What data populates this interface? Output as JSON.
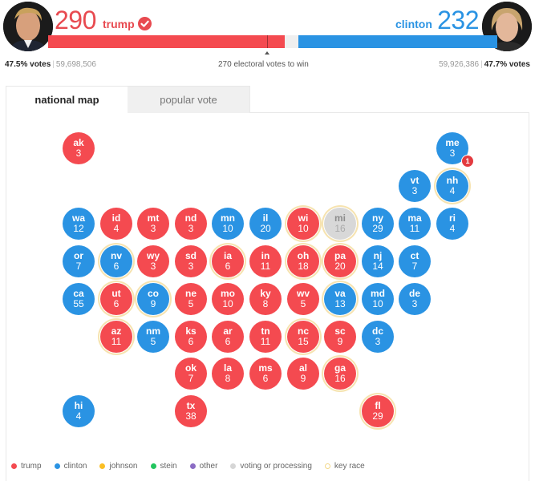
{
  "header": {
    "trump": {
      "electoral_votes": "290",
      "name": "trump",
      "winner": true,
      "popular_pct": "47.5% votes",
      "popular_count": "59,698,506",
      "color": "#f44a50"
    },
    "clinton": {
      "electoral_votes": "232",
      "name": "clinton",
      "winner": false,
      "popular_pct": "47.7% votes",
      "popular_count": "59,926,386",
      "color": "#2a93e3"
    },
    "threshold_label": "270 electoral votes to win",
    "separator": "|"
  },
  "tabs": [
    {
      "label": "national map",
      "active": true
    },
    {
      "label": "popular vote",
      "active": false
    }
  ],
  "map": {
    "states": [
      {
        "abbr": "ak",
        "ev": "3",
        "winner": "trump",
        "key": false,
        "col": 0,
        "row": 0
      },
      {
        "abbr": "me",
        "ev": "3",
        "winner": "clinton",
        "key": false,
        "col": 10,
        "row": 0,
        "badge": "1"
      },
      {
        "abbr": "vt",
        "ev": "3",
        "winner": "clinton",
        "key": false,
        "col": 9,
        "row": 1
      },
      {
        "abbr": "nh",
        "ev": "4",
        "winner": "clinton",
        "key": true,
        "col": 10,
        "row": 1
      },
      {
        "abbr": "wa",
        "ev": "12",
        "winner": "clinton",
        "key": false,
        "col": 0,
        "row": 2
      },
      {
        "abbr": "id",
        "ev": "4",
        "winner": "trump",
        "key": false,
        "col": 1,
        "row": 2
      },
      {
        "abbr": "mt",
        "ev": "3",
        "winner": "trump",
        "key": false,
        "col": 2,
        "row": 2
      },
      {
        "abbr": "nd",
        "ev": "3",
        "winner": "trump",
        "key": false,
        "col": 3,
        "row": 2
      },
      {
        "abbr": "mn",
        "ev": "10",
        "winner": "clinton",
        "key": false,
        "col": 4,
        "row": 2
      },
      {
        "abbr": "il",
        "ev": "20",
        "winner": "clinton",
        "key": false,
        "col": 5,
        "row": 2
      },
      {
        "abbr": "wi",
        "ev": "10",
        "winner": "trump",
        "key": true,
        "col": 6,
        "row": 2
      },
      {
        "abbr": "mi",
        "ev": "16",
        "winner": "pending",
        "key": true,
        "col": 7,
        "row": 2
      },
      {
        "abbr": "ny",
        "ev": "29",
        "winner": "clinton",
        "key": false,
        "col": 8,
        "row": 2
      },
      {
        "abbr": "ma",
        "ev": "11",
        "winner": "clinton",
        "key": false,
        "col": 9,
        "row": 2
      },
      {
        "abbr": "ri",
        "ev": "4",
        "winner": "clinton",
        "key": false,
        "col": 10,
        "row": 2
      },
      {
        "abbr": "or",
        "ev": "7",
        "winner": "clinton",
        "key": false,
        "col": 0,
        "row": 3
      },
      {
        "abbr": "nv",
        "ev": "6",
        "winner": "clinton",
        "key": true,
        "col": 1,
        "row": 3
      },
      {
        "abbr": "wy",
        "ev": "3",
        "winner": "trump",
        "key": false,
        "col": 2,
        "row": 3
      },
      {
        "abbr": "sd",
        "ev": "3",
        "winner": "trump",
        "key": false,
        "col": 3,
        "row": 3
      },
      {
        "abbr": "ia",
        "ev": "6",
        "winner": "trump",
        "key": true,
        "col": 4,
        "row": 3
      },
      {
        "abbr": "in",
        "ev": "11",
        "winner": "trump",
        "key": false,
        "col": 5,
        "row": 3
      },
      {
        "abbr": "oh",
        "ev": "18",
        "winner": "trump",
        "key": true,
        "col": 6,
        "row": 3
      },
      {
        "abbr": "pa",
        "ev": "20",
        "winner": "trump",
        "key": true,
        "col": 7,
        "row": 3
      },
      {
        "abbr": "nj",
        "ev": "14",
        "winner": "clinton",
        "key": false,
        "col": 8,
        "row": 3
      },
      {
        "abbr": "ct",
        "ev": "7",
        "winner": "clinton",
        "key": false,
        "col": 9,
        "row": 3
      },
      {
        "abbr": "ca",
        "ev": "55",
        "winner": "clinton",
        "key": false,
        "col": 0,
        "row": 4
      },
      {
        "abbr": "ut",
        "ev": "6",
        "winner": "trump",
        "key": true,
        "col": 1,
        "row": 4
      },
      {
        "abbr": "co",
        "ev": "9",
        "winner": "clinton",
        "key": true,
        "col": 2,
        "row": 4
      },
      {
        "abbr": "ne",
        "ev": "5",
        "winner": "trump",
        "key": false,
        "col": 3,
        "row": 4
      },
      {
        "abbr": "mo",
        "ev": "10",
        "winner": "trump",
        "key": false,
        "col": 4,
        "row": 4
      },
      {
        "abbr": "ky",
        "ev": "8",
        "winner": "trump",
        "key": false,
        "col": 5,
        "row": 4
      },
      {
        "abbr": "wv",
        "ev": "5",
        "winner": "trump",
        "key": false,
        "col": 6,
        "row": 4
      },
      {
        "abbr": "va",
        "ev": "13",
        "winner": "clinton",
        "key": true,
        "col": 7,
        "row": 4
      },
      {
        "abbr": "md",
        "ev": "10",
        "winner": "clinton",
        "key": false,
        "col": 8,
        "row": 4
      },
      {
        "abbr": "de",
        "ev": "3",
        "winner": "clinton",
        "key": false,
        "col": 9,
        "row": 4
      },
      {
        "abbr": "az",
        "ev": "11",
        "winner": "trump",
        "key": true,
        "col": 1,
        "row": 5
      },
      {
        "abbr": "nm",
        "ev": "5",
        "winner": "clinton",
        "key": false,
        "col": 2,
        "row": 5
      },
      {
        "abbr": "ks",
        "ev": "6",
        "winner": "trump",
        "key": false,
        "col": 3,
        "row": 5
      },
      {
        "abbr": "ar",
        "ev": "6",
        "winner": "trump",
        "key": false,
        "col": 4,
        "row": 5
      },
      {
        "abbr": "tn",
        "ev": "11",
        "winner": "trump",
        "key": false,
        "col": 5,
        "row": 5
      },
      {
        "abbr": "nc",
        "ev": "15",
        "winner": "trump",
        "key": true,
        "col": 6,
        "row": 5
      },
      {
        "abbr": "sc",
        "ev": "9",
        "winner": "trump",
        "key": false,
        "col": 7,
        "row": 5
      },
      {
        "abbr": "dc",
        "ev": "3",
        "winner": "clinton",
        "key": false,
        "col": 8,
        "row": 5
      },
      {
        "abbr": "ok",
        "ev": "7",
        "winner": "trump",
        "key": false,
        "col": 3,
        "row": 6
      },
      {
        "abbr": "la",
        "ev": "8",
        "winner": "trump",
        "key": false,
        "col": 4,
        "row": 6
      },
      {
        "abbr": "ms",
        "ev": "6",
        "winner": "trump",
        "key": false,
        "col": 5,
        "row": 6
      },
      {
        "abbr": "al",
        "ev": "9",
        "winner": "trump",
        "key": false,
        "col": 6,
        "row": 6
      },
      {
        "abbr": "ga",
        "ev": "16",
        "winner": "trump",
        "key": true,
        "col": 7,
        "row": 6
      },
      {
        "abbr": "hi",
        "ev": "4",
        "winner": "clinton",
        "key": false,
        "col": 0,
        "row": 7
      },
      {
        "abbr": "tx",
        "ev": "38",
        "winner": "trump",
        "key": false,
        "col": 3,
        "row": 7
      },
      {
        "abbr": "fl",
        "ev": "29",
        "winner": "trump",
        "key": true,
        "col": 8,
        "row": 7
      }
    ]
  },
  "legend": [
    {
      "label": "trump",
      "color": "#f44a50"
    },
    {
      "label": "clinton",
      "color": "#2a93e3"
    },
    {
      "label": "johnson",
      "color": "#fbbf24"
    },
    {
      "label": "stein",
      "color": "#22c55e"
    },
    {
      "label": "other",
      "color": "#8b6cc4"
    },
    {
      "label": "voting or processing",
      "color": "#d6d6d6"
    },
    {
      "label": "key race",
      "color": "key"
    }
  ]
}
